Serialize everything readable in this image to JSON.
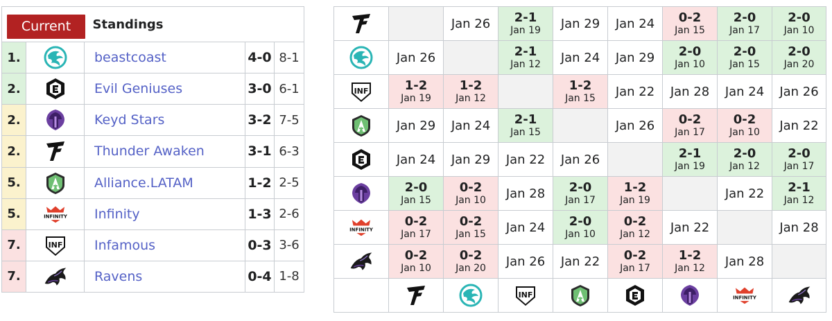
{
  "standings": {
    "current_label": "Current",
    "title": "Standings",
    "rows": [
      {
        "rank": "1.",
        "rank_color": "green",
        "logo": "beastcoast",
        "name": "beastcoast",
        "series": "4-0",
        "games": "8-1"
      },
      {
        "rank": "2.",
        "rank_color": "green",
        "logo": "evilgeniuses",
        "name": "Evil Geniuses",
        "series": "3-0",
        "games": "6-1"
      },
      {
        "rank": "2.",
        "rank_color": "yellow",
        "logo": "keydstars",
        "name": "Keyd Stars",
        "series": "3-2",
        "games": "7-5"
      },
      {
        "rank": "2.",
        "rank_color": "yellow",
        "logo": "thunderawaken",
        "name": "Thunder Awaken",
        "series": "3-1",
        "games": "6-3"
      },
      {
        "rank": "5.",
        "rank_color": "yellow",
        "logo": "alliance",
        "name": "Alliance.LATAM",
        "series": "1-2",
        "games": "2-5"
      },
      {
        "rank": "5.",
        "rank_color": "yellow",
        "logo": "infinity",
        "name": "Infinity",
        "series": "1-3",
        "games": "2-6"
      },
      {
        "rank": "7.",
        "rank_color": "red",
        "logo": "infamous",
        "name": "Infamous",
        "series": "0-3",
        "games": "3-6"
      },
      {
        "rank": "7.",
        "rank_color": "red",
        "logo": "ravens",
        "name": "Ravens",
        "series": "0-4",
        "games": "1-8"
      }
    ]
  },
  "crosstable": {
    "team_order": [
      "thunderawaken",
      "beastcoast",
      "infamous",
      "alliance",
      "evilgeniuses",
      "keydstars",
      "infinity",
      "ravens"
    ],
    "rows": [
      {
        "logo": "thunderawaken",
        "cells": [
          {
            "type": "self"
          },
          {
            "type": "date",
            "date": "Jan 26"
          },
          {
            "type": "win",
            "result": "2-1",
            "date": "Jan 19"
          },
          {
            "type": "date",
            "date": "Jan 29"
          },
          {
            "type": "date",
            "date": "Jan 24"
          },
          {
            "type": "loss",
            "result": "0-2",
            "date": "Jan 15"
          },
          {
            "type": "win",
            "result": "2-0",
            "date": "Jan 17"
          },
          {
            "type": "win",
            "result": "2-0",
            "date": "Jan 10"
          }
        ]
      },
      {
        "logo": "beastcoast",
        "cells": [
          {
            "type": "date",
            "date": "Jan 26"
          },
          {
            "type": "self"
          },
          {
            "type": "win",
            "result": "2-1",
            "date": "Jan 12"
          },
          {
            "type": "date",
            "date": "Jan 24"
          },
          {
            "type": "date",
            "date": "Jan 29"
          },
          {
            "type": "win",
            "result": "2-0",
            "date": "Jan 10"
          },
          {
            "type": "win",
            "result": "2-0",
            "date": "Jan 15"
          },
          {
            "type": "win",
            "result": "2-0",
            "date": "Jan 20"
          }
        ]
      },
      {
        "logo": "infamous",
        "cells": [
          {
            "type": "loss",
            "result": "1-2",
            "date": "Jan 19"
          },
          {
            "type": "loss",
            "result": "1-2",
            "date": "Jan 12"
          },
          {
            "type": "self"
          },
          {
            "type": "loss",
            "result": "1-2",
            "date": "Jan 15"
          },
          {
            "type": "date",
            "date": "Jan 22"
          },
          {
            "type": "date",
            "date": "Jan 28"
          },
          {
            "type": "date",
            "date": "Jan 24"
          },
          {
            "type": "date",
            "date": "Jan 26"
          }
        ]
      },
      {
        "logo": "alliance",
        "cells": [
          {
            "type": "date",
            "date": "Jan 29"
          },
          {
            "type": "date",
            "date": "Jan 24"
          },
          {
            "type": "win",
            "result": "2-1",
            "date": "Jan 15"
          },
          {
            "type": "self"
          },
          {
            "type": "date",
            "date": "Jan 26"
          },
          {
            "type": "loss",
            "result": "0-2",
            "date": "Jan 17"
          },
          {
            "type": "loss",
            "result": "0-2",
            "date": "Jan 10"
          },
          {
            "type": "date",
            "date": "Jan 22"
          }
        ]
      },
      {
        "logo": "evilgeniuses",
        "cells": [
          {
            "type": "date",
            "date": "Jan 24"
          },
          {
            "type": "date",
            "date": "Jan 29"
          },
          {
            "type": "date",
            "date": "Jan 22"
          },
          {
            "type": "date",
            "date": "Jan 26"
          },
          {
            "type": "self"
          },
          {
            "type": "win",
            "result": "2-1",
            "date": "Jan 19"
          },
          {
            "type": "win",
            "result": "2-0",
            "date": "Jan 12"
          },
          {
            "type": "win",
            "result": "2-0",
            "date": "Jan 17"
          }
        ]
      },
      {
        "logo": "keydstars",
        "cells": [
          {
            "type": "win",
            "result": "2-0",
            "date": "Jan 15"
          },
          {
            "type": "loss",
            "result": "0-2",
            "date": "Jan 10"
          },
          {
            "type": "date",
            "date": "Jan 28"
          },
          {
            "type": "win",
            "result": "2-0",
            "date": "Jan 17"
          },
          {
            "type": "loss",
            "result": "1-2",
            "date": "Jan 19"
          },
          {
            "type": "self"
          },
          {
            "type": "date",
            "date": "Jan 22"
          },
          {
            "type": "win",
            "result": "2-1",
            "date": "Jan 12"
          }
        ]
      },
      {
        "logo": "infinity",
        "cells": [
          {
            "type": "loss",
            "result": "0-2",
            "date": "Jan 17"
          },
          {
            "type": "loss",
            "result": "0-2",
            "date": "Jan 15"
          },
          {
            "type": "date",
            "date": "Jan 24"
          },
          {
            "type": "win",
            "result": "2-0",
            "date": "Jan 10"
          },
          {
            "type": "loss",
            "result": "0-2",
            "date": "Jan 12"
          },
          {
            "type": "date",
            "date": "Jan 22"
          },
          {
            "type": "self"
          },
          {
            "type": "date",
            "date": "Jan 28"
          }
        ]
      },
      {
        "logo": "ravens",
        "cells": [
          {
            "type": "loss",
            "result": "0-2",
            "date": "Jan 10"
          },
          {
            "type": "loss",
            "result": "0-2",
            "date": "Jan 20"
          },
          {
            "type": "date",
            "date": "Jan 26"
          },
          {
            "type": "date",
            "date": "Jan 22"
          },
          {
            "type": "loss",
            "result": "0-2",
            "date": "Jan 17"
          },
          {
            "type": "loss",
            "result": "1-2",
            "date": "Jan 12"
          },
          {
            "type": "date",
            "date": "Jan 28"
          },
          {
            "type": "self"
          }
        ]
      }
    ]
  },
  "logo_text": {
    "infinity": "INFINITY",
    "infamous": "INF"
  },
  "colors": {
    "win": "#dcf2dc",
    "loss": "#fbe1e1",
    "self": "#f2f2f2",
    "rank_green": "#dcf2dc",
    "rank_yellow": "#fbf2cd",
    "rank_red": "#fbe1e1",
    "link": "#5461c6",
    "button": "#b22222",
    "beastcoast": "#2ab5b5",
    "keydstars": "#6b3fa0",
    "infinity_red": "#e0402c",
    "ravens": "#5a3a86"
  }
}
